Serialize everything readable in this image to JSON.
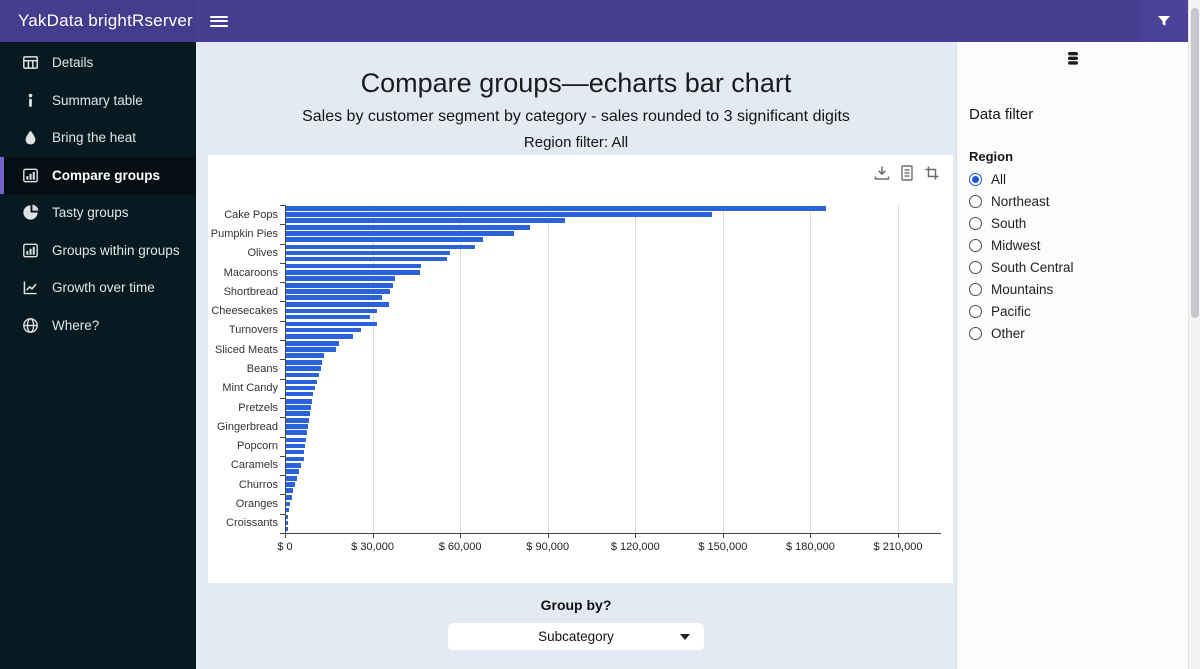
{
  "header": {
    "brand": "YakData brightRserver",
    "icons": [
      "menu-icon",
      "filter-icon"
    ]
  },
  "sidebar": {
    "items": [
      {
        "label": "Details",
        "icon": "table",
        "active": false
      },
      {
        "label": "Summary table",
        "icon": "info",
        "active": false
      },
      {
        "label": "Bring the heat",
        "icon": "flame",
        "active": false
      },
      {
        "label": "Compare groups",
        "icon": "bar-chart",
        "active": true
      },
      {
        "label": "Tasty groups",
        "icon": "pie-chart",
        "active": false
      },
      {
        "label": "Groups within groups",
        "icon": "bar-chart",
        "active": false
      },
      {
        "label": "Growth over time",
        "icon": "line-chart",
        "active": false
      },
      {
        "label": "Where?",
        "icon": "globe",
        "active": false
      }
    ]
  },
  "main": {
    "title": "Compare groups—echarts bar chart",
    "subtitle": "Sales by customer segment by category - sales rounded to 3 significant digits",
    "region_line": "Region filter: All",
    "toolbox_icons": [
      "save-as-image",
      "data-view",
      "data-zoom"
    ],
    "group_by_label": "Group by?",
    "group_by_value": "Subcategory"
  },
  "chart_data": {
    "type": "bar",
    "orientation": "horizontal",
    "title": "Sales by customer segment by category",
    "legend": "none",
    "grid": true,
    "bar_color": "#2962d9",
    "xlim": [
      0,
      210000
    ],
    "x_tick_labels": [
      "$ 0",
      "$ 30,000",
      "$ 60,000",
      "$ 90,000",
      "$ 120,000",
      "$ 150,000",
      "$ 180,000",
      "$ 210,000"
    ],
    "categories": [
      "Cake Pops",
      "Pumpkin Pies",
      "Olives",
      "Macaroons",
      "Shortbread",
      "Cheesecakes",
      "Turnovers",
      "Sliced Meats",
      "Beans",
      "Mint Candy",
      "Pretzels",
      "Gingerbread",
      "Popcorn",
      "Caramels",
      "Churros",
      "Oranges",
      "Croissants"
    ],
    "groups": [
      {
        "category": "Cake Pops",
        "values": [
          185000,
          146000,
          95500
        ]
      },
      {
        "category": "Pumpkin Pies",
        "values": [
          83600,
          78100,
          67600
        ]
      },
      {
        "category": "Olives",
        "values": [
          64800,
          56300,
          55100
        ]
      },
      {
        "category": "Macaroons",
        "values": [
          46200,
          45800,
          37400
        ]
      },
      {
        "category": "Shortbread",
        "values": [
          36800,
          35600,
          33000
        ]
      },
      {
        "category": "Cheesecakes",
        "values": [
          35300,
          31200,
          28800
        ]
      },
      {
        "category": "Turnovers",
        "values": [
          31100,
          25800,
          23100
        ]
      },
      {
        "category": "Sliced Meats",
        "values": [
          18300,
          17100,
          13100
        ]
      },
      {
        "category": "Beans",
        "values": [
          12500,
          11900,
          11200
        ]
      },
      {
        "category": "Mint Candy",
        "values": [
          10600,
          10000,
          9100
        ]
      },
      {
        "category": "Pretzels",
        "values": [
          8900,
          8500,
          8200
        ]
      },
      {
        "category": "Gingerbread",
        "values": [
          8000,
          7700,
          7200
        ]
      },
      {
        "category": "Popcorn",
        "values": [
          7000,
          6600,
          6300
        ]
      },
      {
        "category": "Caramels",
        "values": [
          6000,
          5200,
          4500
        ]
      },
      {
        "category": "Churros",
        "values": [
          3900,
          3200,
          2500
        ]
      },
      {
        "category": "Oranges",
        "values": [
          2100,
          1400,
          1000
        ]
      },
      {
        "category": "Croissants",
        "values": [
          700,
          500,
          300
        ]
      }
    ]
  },
  "right_panel": {
    "icon": "database",
    "heading": "Data filter",
    "group_label": "Region",
    "options": [
      {
        "label": "All",
        "selected": true
      },
      {
        "label": "Northeast",
        "selected": false
      },
      {
        "label": "South",
        "selected": false
      },
      {
        "label": "Midwest",
        "selected": false
      },
      {
        "label": "South Central",
        "selected": false
      },
      {
        "label": "Mountains",
        "selected": false
      },
      {
        "label": "Pacific",
        "selected": false
      },
      {
        "label": "Other",
        "selected": false
      }
    ]
  },
  "colors": {
    "header_purple": "#473e92",
    "sidebar_bg": "#081a21",
    "active_accent": "#7263cf",
    "page_bg": "#e3eaf3",
    "bar_blue": "#2962d9",
    "radio_accent": "#1f56d9"
  }
}
